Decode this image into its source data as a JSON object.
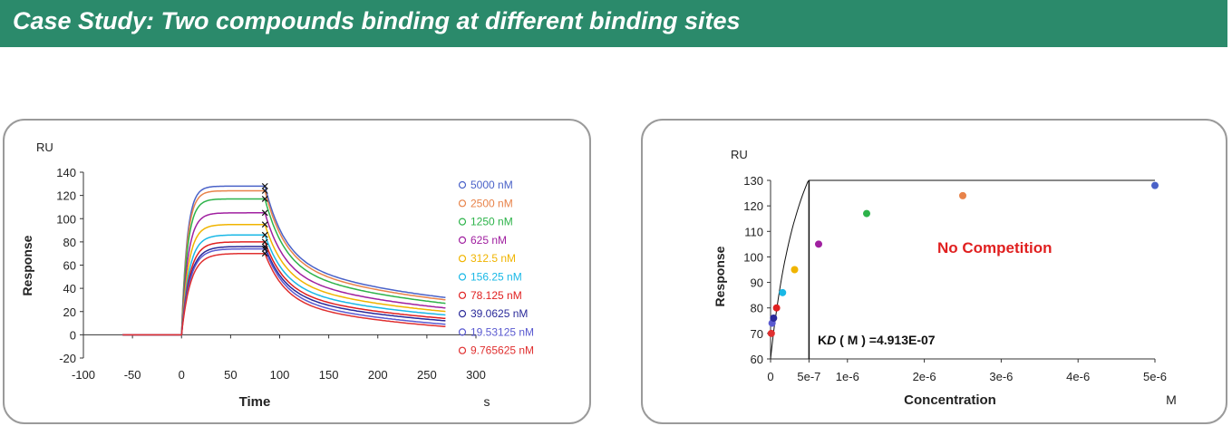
{
  "header": {
    "title": "Case Study: Two compounds binding at different binding sites",
    "color": "#2b8a6b"
  },
  "chart_data": [
    {
      "type": "line",
      "unit_label": "RU",
      "ylabel": "Response",
      "xlabel": "Time",
      "x_unit": "s",
      "xlim": [
        -100,
        300
      ],
      "ylim": [
        -20,
        140
      ],
      "xticks": [
        -100,
        -50,
        0,
        50,
        100,
        150,
        200,
        250,
        300
      ],
      "yticks": [
        -20,
        0,
        20,
        40,
        60,
        80,
        100,
        120,
        140
      ],
      "legend_position": "right",
      "series": [
        {
          "name": "5000 nM",
          "color": "#4a62c8",
          "plateau": 128,
          "end": 32
        },
        {
          "name": "2500 nM",
          "color": "#e8834a",
          "plateau": 124,
          "end": 30
        },
        {
          "name": "1250 nM",
          "color": "#2db34a",
          "plateau": 117,
          "end": 27
        },
        {
          "name": "625 nM",
          "color": "#a020a0",
          "plateau": 105,
          "end": 23
        },
        {
          "name": "312.5 nM",
          "color": "#f0b400",
          "plateau": 95,
          "end": 20
        },
        {
          "name": "156.25 nM",
          "color": "#1ab8e6",
          "plateau": 86,
          "end": 17
        },
        {
          "name": "78.125 nM",
          "color": "#e02020",
          "plateau": 80,
          "end": 14
        },
        {
          "name": "39.0625 nM",
          "color": "#2a2a9a",
          "plateau": 76,
          "end": 12
        },
        {
          "name": "19.53125 nM",
          "color": "#5a5ad0",
          "plateau": 74,
          "end": 9
        },
        {
          "name": "9.765625 nM",
          "color": "#e03030",
          "plateau": 70,
          "end": 7
        }
      ],
      "injection_start": 0,
      "injection_end": 85,
      "baseline_start": -60,
      "data_end": 270
    },
    {
      "type": "scatter",
      "unit_label": "RU",
      "ylabel": "Response",
      "xlabel": "Concentration",
      "x_unit": "M",
      "xlim": [
        0,
        5e-06
      ],
      "ylim": [
        60,
        130
      ],
      "xtick_values": [
        0,
        5e-07,
        1e-06,
        2e-06,
        3e-06,
        4e-06,
        5e-06
      ],
      "xtick_labels": [
        "0",
        "5e-7",
        "1e-6",
        "2e-6",
        "3e-6",
        "4e-6",
        "5e-6"
      ],
      "yticks": [
        60,
        70,
        80,
        90,
        100,
        110,
        120,
        130
      ],
      "points": [
        {
          "x": 9.765625e-09,
          "y": 70,
          "color": "#e03030"
        },
        {
          "x": 1.953125e-08,
          "y": 74,
          "color": "#5a5ad0"
        },
        {
          "x": 3.90625e-08,
          "y": 76,
          "color": "#2a2a9a"
        },
        {
          "x": 7.8125e-08,
          "y": 80,
          "color": "#e02020"
        },
        {
          "x": 1.5625e-07,
          "y": 86,
          "color": "#1ab8e6"
        },
        {
          "x": 3.125e-07,
          "y": 95,
          "color": "#f0b400"
        },
        {
          "x": 6.25e-07,
          "y": 105,
          "color": "#a020a0"
        },
        {
          "x": 1.25e-06,
          "y": 117,
          "color": "#2db34a"
        },
        {
          "x": 2.5e-06,
          "y": 124,
          "color": "#e8834a"
        },
        {
          "x": 5e-06,
          "y": 128,
          "color": "#4a62c8"
        }
      ],
      "fit": {
        "kd": 4.913e-07,
        "rmax": 140,
        "offset": 60
      },
      "kd_line_x": 5e-07,
      "kd_label_prefix": "K",
      "kd_label_sub": "D",
      "kd_label_suffix": " ( M ) =4.913E-07",
      "annotation": "No Competition",
      "annotation_color": "#e02020"
    }
  ]
}
